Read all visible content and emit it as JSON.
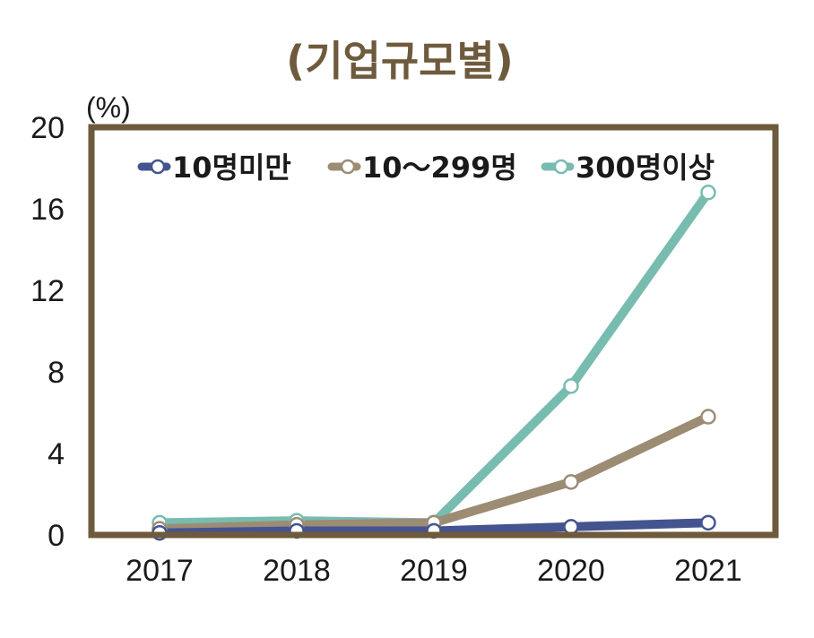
{
  "chart_data": {
    "type": "line",
    "title": "(기업규모별)",
    "ylabel": "(%)",
    "xlabel": "",
    "categories": [
      "2017",
      "2018",
      "2019",
      "2020",
      "2021"
    ],
    "ylim": [
      0,
      20
    ],
    "yticks": [
      "0",
      "4",
      "8",
      "12",
      "16",
      "20"
    ],
    "grid": false,
    "legend_position": "top",
    "series": [
      {
        "name": "10명미만",
        "color": "#44548f",
        "values": [
          0.1,
          0.2,
          0.2,
          0.4,
          0.6
        ]
      },
      {
        "name": "10～299명",
        "color": "#9c8c74",
        "values": [
          0.3,
          0.5,
          0.6,
          2.6,
          5.8
        ]
      },
      {
        "name": "300명이상",
        "color": "#78bcb0",
        "values": [
          0.6,
          0.7,
          0.6,
          7.3,
          16.8
        ]
      }
    ],
    "colors": {
      "frame": "#6e5a3c",
      "title": "#6e5a3c",
      "text": "#1a1a1a"
    }
  }
}
